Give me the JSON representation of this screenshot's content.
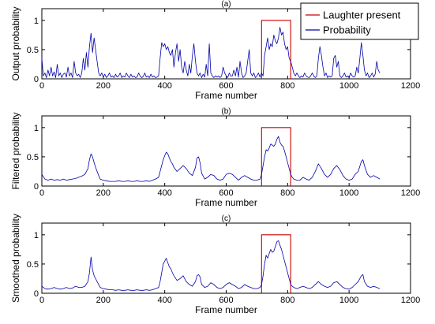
{
  "chart_data": [
    {
      "type": "line",
      "title": "(a)",
      "xlabel": "Frame number",
      "ylabel": "Output probability",
      "xlim": [
        0,
        1200
      ],
      "ylim": [
        0,
        1.2
      ],
      "xticks": [
        0,
        200,
        400,
        600,
        800,
        1000,
        1200
      ],
      "yticks": [
        0,
        0.5,
        1
      ],
      "legend": {
        "position": "top-right",
        "entries": [
          {
            "label": "Laughter present",
            "color": "#cc0000"
          },
          {
            "label": "Probability",
            "color": "#0000aa"
          }
        ]
      },
      "series": [
        {
          "name": "Laughter present",
          "color": "#cc0000",
          "x": [
            715,
            715,
            810,
            810
          ],
          "y": [
            0,
            1,
            1,
            0
          ]
        },
        {
          "name": "Probability",
          "color": "#0000aa",
          "x": [
            0,
            5,
            10,
            15,
            20,
            25,
            30,
            35,
            40,
            45,
            50,
            55,
            60,
            65,
            70,
            75,
            80,
            85,
            90,
            95,
            100,
            105,
            110,
            115,
            120,
            125,
            130,
            135,
            140,
            145,
            150,
            155,
            160,
            165,
            170,
            175,
            180,
            185,
            190,
            195,
            200,
            205,
            210,
            215,
            220,
            225,
            230,
            235,
            240,
            245,
            250,
            255,
            260,
            265,
            270,
            275,
            280,
            285,
            290,
            295,
            300,
            305,
            310,
            315,
            320,
            325,
            330,
            335,
            340,
            345,
            350,
            355,
            360,
            365,
            370,
            375,
            380,
            385,
            390,
            395,
            400,
            405,
            410,
            415,
            420,
            425,
            430,
            435,
            440,
            445,
            450,
            455,
            460,
            465,
            470,
            475,
            480,
            485,
            490,
            495,
            500,
            505,
            510,
            515,
            520,
            525,
            530,
            535,
            540,
            545,
            550,
            555,
            560,
            565,
            570,
            575,
            580,
            585,
            590,
            595,
            600,
            605,
            610,
            615,
            620,
            625,
            630,
            635,
            640,
            645,
            650,
            655,
            660,
            665,
            670,
            675,
            680,
            685,
            690,
            695,
            700,
            705,
            710,
            715,
            720,
            725,
            730,
            735,
            740,
            745,
            750,
            755,
            760,
            765,
            770,
            775,
            780,
            785,
            790,
            795,
            800,
            805,
            810,
            815,
            820,
            825,
            830,
            835,
            840,
            845,
            850,
            855,
            860,
            865,
            870,
            875,
            880,
            885,
            890,
            895,
            900,
            905,
            910,
            915,
            920,
            925,
            930,
            935,
            940,
            945,
            950,
            955,
            960,
            965,
            970,
            975,
            980,
            985,
            990,
            995,
            1000,
            1005,
            1010,
            1015,
            1020,
            1025,
            1030,
            1035,
            1040,
            1045,
            1050,
            1055,
            1060,
            1065,
            1070,
            1075,
            1080,
            1085,
            1090,
            1095,
            1100
          ],
          "y": [
            0.35,
            0.05,
            0.1,
            0.02,
            0.15,
            0.05,
            0.2,
            0.05,
            0.12,
            0.02,
            0.25,
            0.05,
            0.1,
            0.02,
            0.08,
            0.1,
            0.03,
            0.2,
            0.05,
            0.1,
            0.02,
            0.3,
            0.1,
            0.05,
            0.08,
            0.02,
            0.1,
            0.35,
            0.15,
            0.45,
            0.2,
            0.55,
            0.78,
            0.45,
            0.7,
            0.5,
            0.3,
            0.1,
            0.05,
            0.1,
            0.03,
            0.08,
            0.02,
            0.05,
            0.1,
            0.03,
            0.05,
            0.02,
            0.08,
            0.03,
            0.05,
            0.1,
            0.02,
            0.05,
            0.03,
            0.1,
            0.05,
            0.02,
            0.08,
            0.03,
            0.05,
            0.02,
            0.03,
            0.1,
            0.05,
            0.02,
            0.04,
            0.1,
            0.03,
            0.05,
            0.02,
            0.08,
            0.03,
            0.05,
            0.02,
            0.03,
            0.05,
            0.35,
            0.62,
            0.55,
            0.6,
            0.5,
            0.55,
            0.45,
            0.4,
            0.5,
            0.2,
            0.45,
            0.6,
            0.3,
            0.5,
            0.2,
            0.1,
            0.3,
            0.15,
            0.05,
            0.25,
            0.1,
            0.4,
            0.6,
            0.3,
            0.1,
            0.05,
            0.1,
            0.02,
            0.08,
            0.03,
            0.25,
            0.05,
            0.6,
            0.1,
            0.05,
            0.02,
            0.05,
            0.03,
            0.05,
            0.02,
            0.05,
            0.2,
            0.1,
            0.05,
            0.02,
            0.1,
            0.05,
            0.05,
            0.15,
            0.05,
            0.2,
            0.03,
            0.3,
            0.1,
            0.02,
            0.05,
            0.1,
            0.3,
            0.5,
            0.1,
            0.05,
            0.1,
            0.02,
            0.05,
            0.1,
            0.03,
            0.1,
            0.05,
            0.4,
            0.55,
            0.7,
            0.5,
            0.6,
            0.55,
            0.75,
            0.65,
            0.6,
            0.7,
            0.88,
            0.75,
            0.8,
            0.6,
            0.5,
            0.55,
            0.35,
            0.3,
            0.2,
            0.1,
            0.05,
            0.1,
            0.05,
            0.02,
            0.05,
            0.03,
            0.1,
            0.05,
            0.03,
            0.02,
            0.05,
            0.1,
            0.05,
            0.02,
            0.05,
            0.35,
            0.55,
            0.4,
            0.2,
            0.05,
            0.1,
            0.02,
            0.05,
            0.03,
            0.05,
            0.35,
            0.4,
            0.2,
            0.3,
            0.05,
            0.02,
            0.05,
            0.1,
            0.03,
            0.05,
            0.02,
            0.1,
            0.05,
            0.03,
            0.05,
            0.2,
            0.1,
            0.35,
            0.62,
            0.4,
            0.15,
            0.05,
            0.1,
            0.02,
            0.05,
            0.1,
            0.03,
            0.08,
            0.3,
            0.15,
            0.1
          ]
        }
      ]
    },
    {
      "type": "line",
      "title": "(b)",
      "xlabel": "Frame number",
      "ylabel": "Filtered probability",
      "xlim": [
        0,
        1200
      ],
      "ylim": [
        0,
        1.2
      ],
      "xticks": [
        0,
        200,
        400,
        600,
        800,
        1000,
        1200
      ],
      "yticks": [
        0,
        0.5,
        1
      ],
      "series": [
        {
          "name": "Laughter present",
          "color": "#cc0000",
          "x": [
            715,
            715,
            810,
            810
          ],
          "y": [
            0,
            1,
            1,
            0
          ]
        },
        {
          "name": "Probability",
          "color": "#0000aa",
          "x": [
            0,
            10,
            20,
            30,
            40,
            50,
            60,
            70,
            80,
            90,
            100,
            110,
            120,
            130,
            140,
            150,
            155,
            160,
            165,
            170,
            175,
            180,
            185,
            190,
            200,
            210,
            220,
            230,
            240,
            250,
            260,
            270,
            280,
            290,
            300,
            310,
            320,
            330,
            340,
            350,
            360,
            370,
            380,
            385,
            390,
            395,
            400,
            405,
            410,
            415,
            420,
            425,
            430,
            440,
            450,
            460,
            470,
            480,
            490,
            500,
            505,
            510,
            515,
            520,
            530,
            540,
            550,
            560,
            570,
            580,
            590,
            600,
            610,
            620,
            630,
            640,
            650,
            660,
            670,
            680,
            690,
            700,
            710,
            715,
            720,
            725,
            730,
            735,
            740,
            745,
            750,
            755,
            760,
            765,
            770,
            775,
            780,
            785,
            790,
            795,
            800,
            805,
            810,
            815,
            820,
            830,
            840,
            850,
            860,
            870,
            880,
            890,
            900,
            910,
            920,
            930,
            940,
            950,
            960,
            970,
            980,
            990,
            1000,
            1010,
            1020,
            1030,
            1040,
            1045,
            1050,
            1060,
            1070,
            1080,
            1090,
            1100
          ],
          "y": [
            0.2,
            0.12,
            0.1,
            0.12,
            0.1,
            0.11,
            0.1,
            0.12,
            0.1,
            0.11,
            0.12,
            0.13,
            0.15,
            0.17,
            0.2,
            0.3,
            0.45,
            0.55,
            0.5,
            0.4,
            0.32,
            0.25,
            0.18,
            0.12,
            0.1,
            0.09,
            0.08,
            0.08,
            0.08,
            0.09,
            0.08,
            0.08,
            0.09,
            0.08,
            0.08,
            0.09,
            0.08,
            0.08,
            0.09,
            0.08,
            0.1,
            0.12,
            0.15,
            0.25,
            0.35,
            0.45,
            0.52,
            0.58,
            0.55,
            0.48,
            0.42,
            0.38,
            0.32,
            0.25,
            0.3,
            0.35,
            0.3,
            0.22,
            0.18,
            0.32,
            0.48,
            0.5,
            0.4,
            0.22,
            0.12,
            0.15,
            0.2,
            0.18,
            0.12,
            0.1,
            0.12,
            0.2,
            0.22,
            0.2,
            0.15,
            0.1,
            0.15,
            0.18,
            0.15,
            0.12,
            0.1,
            0.1,
            0.12,
            0.2,
            0.35,
            0.5,
            0.62,
            0.6,
            0.65,
            0.72,
            0.7,
            0.68,
            0.72,
            0.8,
            0.85,
            0.75,
            0.7,
            0.68,
            0.6,
            0.5,
            0.4,
            0.3,
            0.2,
            0.15,
            0.12,
            0.1,
            0.1,
            0.15,
            0.12,
            0.1,
            0.15,
            0.25,
            0.38,
            0.3,
            0.2,
            0.15,
            0.2,
            0.3,
            0.35,
            0.28,
            0.18,
            0.12,
            0.1,
            0.12,
            0.2,
            0.25,
            0.42,
            0.45,
            0.35,
            0.2,
            0.15,
            0.18,
            0.15,
            0.12
          ]
        }
      ]
    },
    {
      "type": "line",
      "title": "(c)",
      "xlabel": "Frame number",
      "ylabel": "Smoothed probability",
      "xlim": [
        0,
        1200
      ],
      "ylim": [
        0,
        1.2
      ],
      "xticks": [
        0,
        200,
        400,
        600,
        800,
        1000,
        1200
      ],
      "yticks": [
        0,
        0.5,
        1
      ],
      "series": [
        {
          "name": "Laughter present",
          "color": "#cc0000",
          "x": [
            715,
            715,
            810,
            810
          ],
          "y": [
            0,
            1,
            1,
            0
          ]
        },
        {
          "name": "Probability",
          "color": "#0000aa",
          "x": [
            0,
            10,
            20,
            30,
            40,
            50,
            60,
            70,
            80,
            90,
            100,
            110,
            120,
            130,
            140,
            150,
            155,
            160,
            165,
            170,
            175,
            180,
            185,
            190,
            200,
            210,
            220,
            230,
            240,
            250,
            260,
            270,
            280,
            290,
            300,
            310,
            320,
            330,
            340,
            350,
            360,
            370,
            380,
            385,
            390,
            395,
            400,
            405,
            410,
            415,
            420,
            425,
            430,
            440,
            450,
            460,
            470,
            480,
            490,
            500,
            505,
            510,
            515,
            520,
            530,
            540,
            550,
            560,
            570,
            580,
            590,
            600,
            610,
            620,
            630,
            640,
            650,
            660,
            670,
            680,
            690,
            700,
            710,
            715,
            720,
            725,
            730,
            735,
            740,
            745,
            750,
            755,
            760,
            765,
            770,
            775,
            780,
            785,
            790,
            795,
            800,
            805,
            810,
            815,
            820,
            830,
            840,
            850,
            860,
            870,
            880,
            890,
            900,
            910,
            920,
            930,
            940,
            950,
            960,
            970,
            980,
            990,
            1000,
            1010,
            1020,
            1030,
            1040,
            1045,
            1050,
            1060,
            1070,
            1080,
            1090,
            1100
          ],
          "y": [
            0.12,
            0.08,
            0.07,
            0.08,
            0.1,
            0.08,
            0.07,
            0.08,
            0.1,
            0.08,
            0.09,
            0.12,
            0.1,
            0.1,
            0.12,
            0.2,
            0.35,
            0.62,
            0.4,
            0.3,
            0.25,
            0.2,
            0.15,
            0.1,
            0.08,
            0.07,
            0.06,
            0.06,
            0.05,
            0.06,
            0.05,
            0.05,
            0.06,
            0.05,
            0.05,
            0.06,
            0.05,
            0.05,
            0.06,
            0.05,
            0.06,
            0.08,
            0.1,
            0.2,
            0.35,
            0.5,
            0.55,
            0.6,
            0.52,
            0.45,
            0.42,
            0.35,
            0.3,
            0.22,
            0.25,
            0.3,
            0.2,
            0.15,
            0.12,
            0.2,
            0.3,
            0.32,
            0.28,
            0.15,
            0.1,
            0.12,
            0.18,
            0.15,
            0.1,
            0.08,
            0.1,
            0.15,
            0.18,
            0.15,
            0.12,
            0.08,
            0.1,
            0.15,
            0.12,
            0.1,
            0.08,
            0.08,
            0.1,
            0.15,
            0.3,
            0.5,
            0.65,
            0.6,
            0.68,
            0.75,
            0.7,
            0.72,
            0.8,
            0.88,
            0.9,
            0.82,
            0.75,
            0.65,
            0.55,
            0.45,
            0.35,
            0.25,
            0.15,
            0.12,
            0.1,
            0.08,
            0.1,
            0.12,
            0.1,
            0.08,
            0.1,
            0.15,
            0.2,
            0.15,
            0.12,
            0.1,
            0.12,
            0.18,
            0.2,
            0.15,
            0.1,
            0.08,
            0.07,
            0.1,
            0.15,
            0.2,
            0.3,
            0.32,
            0.2,
            0.12,
            0.1,
            0.12,
            0.1,
            0.08
          ]
        }
      ]
    }
  ]
}
